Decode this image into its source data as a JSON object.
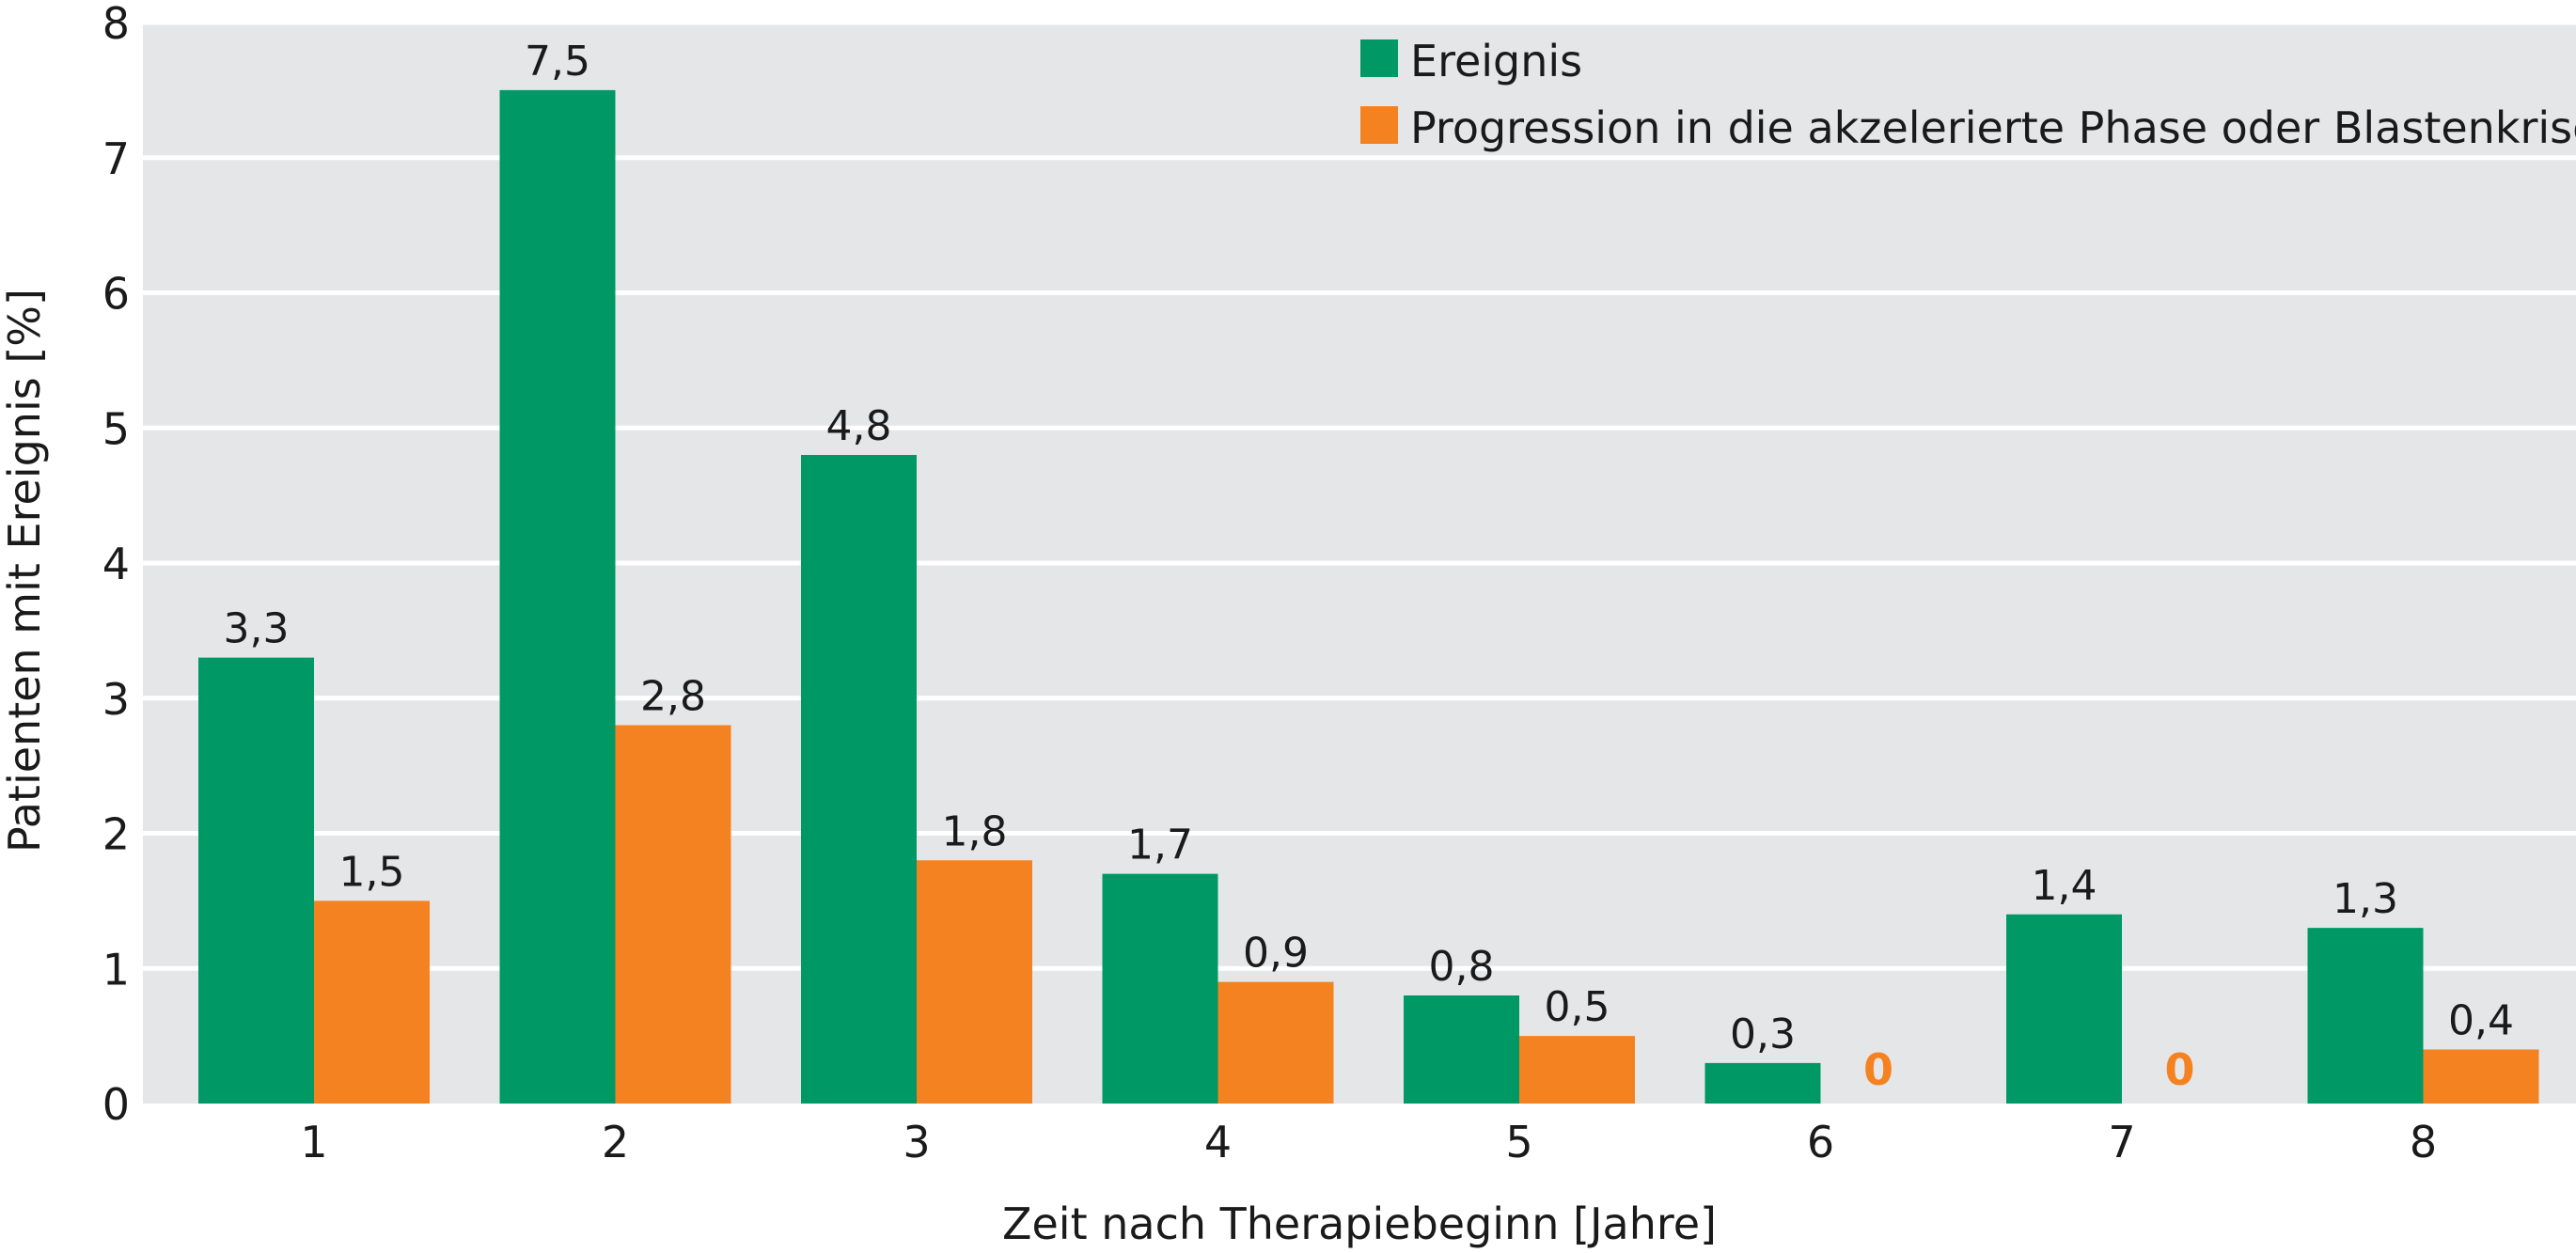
{
  "chart_data": {
    "type": "bar",
    "title": "",
    "xlabel": "Zeit nach Therapiebeginn [Jahre]",
    "ylabel": "Patienten mit Ereignis [%]",
    "categories": [
      "1",
      "2",
      "3",
      "4",
      "5",
      "6",
      "7",
      "8"
    ],
    "ylim": [
      0,
      8
    ],
    "yticks": [
      0,
      1,
      2,
      3,
      4,
      5,
      6,
      7,
      8
    ],
    "grid": true,
    "legend_position": "top-right",
    "series": [
      {
        "name": "Ereignis",
        "color": "#009966",
        "values": [
          3.3,
          7.5,
          4.8,
          1.7,
          0.8,
          0.3,
          1.4,
          1.3
        ],
        "labels": [
          "3,3",
          "7,5",
          "4,8",
          "1,7",
          "0,8",
          "0,3",
          "1,4",
          "1,3"
        ]
      },
      {
        "name": "Progression in die akzelerierte Phase oder Blastenkrise",
        "color": "#F58220",
        "values": [
          1.5,
          2.8,
          1.8,
          0.9,
          0.5,
          0,
          0,
          0.4
        ],
        "labels": [
          "1,5",
          "2,8",
          "1,8",
          "0,9",
          "0,5",
          "0",
          "0",
          "0,4"
        ]
      }
    ],
    "colors": {
      "plot_background": "#E5E6E8",
      "gridline": "#FFFFFF",
      "zero_label": "#F58220"
    }
  }
}
